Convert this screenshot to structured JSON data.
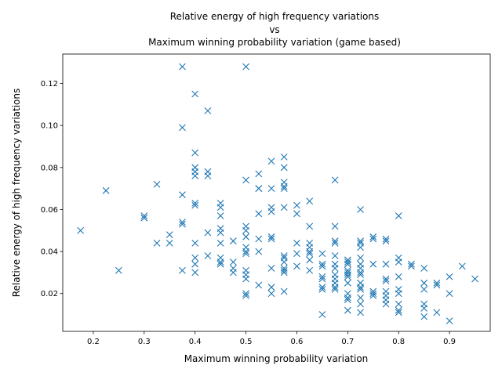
{
  "chart_data": {
    "type": "scatter",
    "title": [
      "Relative energy of high frequency variations",
      "vs",
      "Maximum winning probability variation (game based)"
    ],
    "xlabel": "Maximum winning probability variation",
    "ylabel": "Relative energy of high frequency variations",
    "xlim": [
      0.14,
      0.98
    ],
    "ylim": [
      0.002,
      0.134
    ],
    "xticks": [
      0.2,
      0.3,
      0.4,
      0.5,
      0.6,
      0.7,
      0.8,
      0.9
    ],
    "xtick_labels": [
      "0.2",
      "0.3",
      "0.4",
      "0.5",
      "0.6",
      "0.7",
      "0.8",
      "0.9"
    ],
    "yticks": [
      0.02,
      0.04,
      0.06,
      0.08,
      0.1,
      0.12
    ],
    "ytick_labels": [
      "0.02",
      "0.04",
      "0.06",
      "0.08",
      "0.10",
      "0.12"
    ],
    "grid": false,
    "marker": "x",
    "color": "#1f77b4",
    "points": [
      [
        0.175,
        0.05
      ],
      [
        0.225,
        0.069
      ],
      [
        0.25,
        0.031
      ],
      [
        0.3,
        0.056
      ],
      [
        0.3,
        0.057
      ],
      [
        0.325,
        0.072
      ],
      [
        0.325,
        0.044
      ],
      [
        0.35,
        0.048
      ],
      [
        0.35,
        0.044
      ],
      [
        0.375,
        0.128
      ],
      [
        0.375,
        0.099
      ],
      [
        0.375,
        0.067
      ],
      [
        0.375,
        0.054
      ],
      [
        0.375,
        0.053
      ],
      [
        0.375,
        0.031
      ],
      [
        0.4,
        0.115
      ],
      [
        0.4,
        0.087
      ],
      [
        0.4,
        0.08
      ],
      [
        0.4,
        0.078
      ],
      [
        0.4,
        0.076
      ],
      [
        0.4,
        0.063
      ],
      [
        0.4,
        0.062
      ],
      [
        0.4,
        0.044
      ],
      [
        0.4,
        0.037
      ],
      [
        0.4,
        0.034
      ],
      [
        0.4,
        0.03
      ],
      [
        0.425,
        0.107
      ],
      [
        0.425,
        0.078
      ],
      [
        0.425,
        0.076
      ],
      [
        0.425,
        0.049
      ],
      [
        0.425,
        0.038
      ],
      [
        0.45,
        0.063
      ],
      [
        0.45,
        0.061
      ],
      [
        0.45,
        0.057
      ],
      [
        0.45,
        0.051
      ],
      [
        0.45,
        0.049
      ],
      [
        0.45,
        0.044
      ],
      [
        0.45,
        0.037
      ],
      [
        0.45,
        0.035
      ],
      [
        0.45,
        0.034
      ],
      [
        0.475,
        0.045
      ],
      [
        0.475,
        0.035
      ],
      [
        0.475,
        0.032
      ],
      [
        0.475,
        0.03
      ],
      [
        0.5,
        0.128
      ],
      [
        0.5,
        0.074
      ],
      [
        0.5,
        0.052
      ],
      [
        0.5,
        0.05
      ],
      [
        0.5,
        0.047
      ],
      [
        0.5,
        0.042
      ],
      [
        0.5,
        0.04
      ],
      [
        0.5,
        0.039
      ],
      [
        0.5,
        0.031
      ],
      [
        0.5,
        0.029
      ],
      [
        0.5,
        0.027
      ],
      [
        0.5,
        0.02
      ],
      [
        0.5,
        0.019
      ],
      [
        0.525,
        0.077
      ],
      [
        0.525,
        0.07
      ],
      [
        0.525,
        0.07
      ],
      [
        0.525,
        0.058
      ],
      [
        0.525,
        0.046
      ],
      [
        0.525,
        0.04
      ],
      [
        0.525,
        0.024
      ],
      [
        0.55,
        0.083
      ],
      [
        0.55,
        0.07
      ],
      [
        0.55,
        0.061
      ],
      [
        0.55,
        0.059
      ],
      [
        0.55,
        0.047
      ],
      [
        0.55,
        0.046
      ],
      [
        0.55,
        0.032
      ],
      [
        0.55,
        0.023
      ],
      [
        0.55,
        0.02
      ],
      [
        0.575,
        0.085
      ],
      [
        0.575,
        0.08
      ],
      [
        0.575,
        0.073
      ],
      [
        0.575,
        0.071
      ],
      [
        0.575,
        0.07
      ],
      [
        0.575,
        0.061
      ],
      [
        0.575,
        0.038
      ],
      [
        0.575,
        0.037
      ],
      [
        0.575,
        0.035
      ],
      [
        0.575,
        0.032
      ],
      [
        0.575,
        0.031
      ],
      [
        0.575,
        0.03
      ],
      [
        0.575,
        0.021
      ],
      [
        0.6,
        0.062
      ],
      [
        0.6,
        0.058
      ],
      [
        0.6,
        0.044
      ],
      [
        0.6,
        0.039
      ],
      [
        0.6,
        0.033
      ],
      [
        0.625,
        0.064
      ],
      [
        0.625,
        0.052
      ],
      [
        0.625,
        0.044
      ],
      [
        0.625,
        0.042
      ],
      [
        0.625,
        0.04
      ],
      [
        0.625,
        0.039
      ],
      [
        0.625,
        0.036
      ],
      [
        0.625,
        0.031
      ],
      [
        0.65,
        0.039
      ],
      [
        0.65,
        0.034
      ],
      [
        0.65,
        0.033
      ],
      [
        0.65,
        0.028
      ],
      [
        0.65,
        0.027
      ],
      [
        0.65,
        0.023
      ],
      [
        0.65,
        0.022
      ],
      [
        0.65,
        0.01
      ],
      [
        0.675,
        0.074
      ],
      [
        0.675,
        0.052
      ],
      [
        0.675,
        0.045
      ],
      [
        0.675,
        0.044
      ],
      [
        0.675,
        0.038
      ],
      [
        0.675,
        0.034
      ],
      [
        0.675,
        0.032
      ],
      [
        0.675,
        0.029
      ],
      [
        0.675,
        0.027
      ],
      [
        0.675,
        0.025
      ],
      [
        0.675,
        0.023
      ],
      [
        0.675,
        0.022
      ],
      [
        0.7,
        0.036
      ],
      [
        0.7,
        0.035
      ],
      [
        0.7,
        0.034
      ],
      [
        0.7,
        0.031
      ],
      [
        0.7,
        0.03
      ],
      [
        0.7,
        0.029
      ],
      [
        0.7,
        0.028
      ],
      [
        0.7,
        0.025
      ],
      [
        0.7,
        0.02
      ],
      [
        0.7,
        0.018
      ],
      [
        0.7,
        0.017
      ],
      [
        0.7,
        0.012
      ],
      [
        0.725,
        0.06
      ],
      [
        0.725,
        0.045
      ],
      [
        0.725,
        0.044
      ],
      [
        0.725,
        0.042
      ],
      [
        0.725,
        0.037
      ],
      [
        0.725,
        0.034
      ],
      [
        0.725,
        0.032
      ],
      [
        0.725,
        0.03
      ],
      [
        0.725,
        0.029
      ],
      [
        0.725,
        0.025
      ],
      [
        0.725,
        0.023
      ],
      [
        0.725,
        0.022
      ],
      [
        0.725,
        0.018
      ],
      [
        0.725,
        0.015
      ],
      [
        0.725,
        0.011
      ],
      [
        0.75,
        0.047
      ],
      [
        0.75,
        0.046
      ],
      [
        0.75,
        0.034
      ],
      [
        0.75,
        0.021
      ],
      [
        0.75,
        0.02
      ],
      [
        0.75,
        0.019
      ],
      [
        0.775,
        0.046
      ],
      [
        0.775,
        0.045
      ],
      [
        0.775,
        0.034
      ],
      [
        0.775,
        0.027
      ],
      [
        0.775,
        0.026
      ],
      [
        0.775,
        0.021
      ],
      [
        0.775,
        0.019
      ],
      [
        0.775,
        0.017
      ],
      [
        0.775,
        0.015
      ],
      [
        0.8,
        0.057
      ],
      [
        0.8,
        0.037
      ],
      [
        0.8,
        0.035
      ],
      [
        0.8,
        0.028
      ],
      [
        0.8,
        0.022
      ],
      [
        0.8,
        0.02
      ],
      [
        0.8,
        0.015
      ],
      [
        0.8,
        0.012
      ],
      [
        0.8,
        0.011
      ],
      [
        0.825,
        0.034
      ],
      [
        0.825,
        0.033
      ],
      [
        0.85,
        0.032
      ],
      [
        0.85,
        0.025
      ],
      [
        0.85,
        0.022
      ],
      [
        0.85,
        0.015
      ],
      [
        0.85,
        0.013
      ],
      [
        0.85,
        0.009
      ],
      [
        0.875,
        0.025
      ],
      [
        0.875,
        0.024
      ],
      [
        0.875,
        0.011
      ],
      [
        0.9,
        0.028
      ],
      [
        0.9,
        0.02
      ],
      [
        0.9,
        0.007
      ],
      [
        0.925,
        0.033
      ],
      [
        0.95,
        0.027
      ]
    ]
  }
}
